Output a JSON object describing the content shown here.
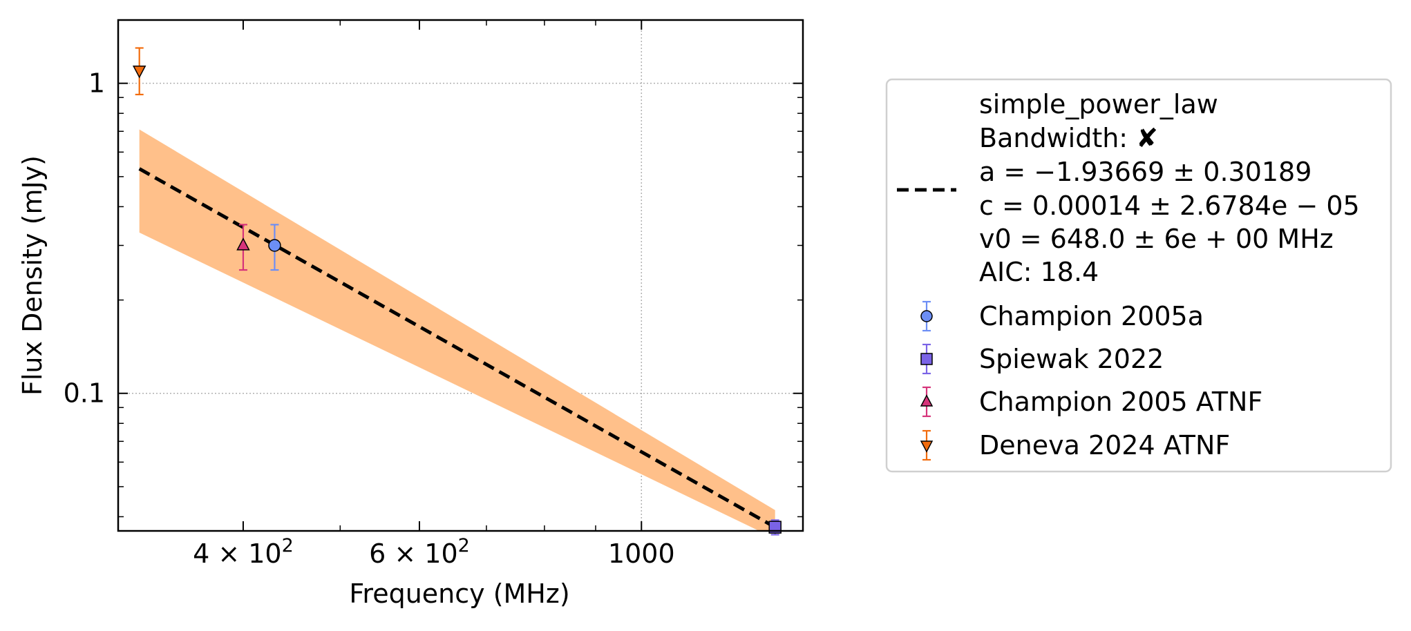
{
  "chart_data": {
    "type": "scatter",
    "xlabel": "Frequency (MHz)",
    "ylabel": "Flux Density (mJy)",
    "x_scale": "log",
    "y_scale": "log",
    "xlim": [
      300,
      1450
    ],
    "ylim": [
      0.036,
      1.6
    ],
    "x_ticks": [
      {
        "value": 400,
        "label_base": "4 × 10",
        "label_exp": "2"
      },
      {
        "value": 600,
        "label_base": "6 × 10",
        "label_exp": "2"
      },
      {
        "value": 1000,
        "label_base": "1000",
        "label_exp": ""
      }
    ],
    "y_ticks": [
      {
        "value": 1,
        "label": "1"
      },
      {
        "value": 0.1,
        "label": "0.1"
      }
    ],
    "grid": true,
    "legend_position": "outside-right",
    "fit": {
      "name": "simple_power_law",
      "legend_lines": [
        "simple_power_law",
        "Bandwidth: ✘",
        "a = −1.93669 ± 0.30189",
        "c = 0.00014 ± 2.6784e − 05",
        "v0 = 648.0 ± 6e + 00 MHz",
        "AIC: 18.4"
      ],
      "x": [
        315,
        1360
      ],
      "y": [
        0.53,
        0.037
      ],
      "band_lower": [
        0.33,
        0.034
      ],
      "band_upper": [
        0.71,
        0.042
      ],
      "line_color": "#000000",
      "band_color": "#ffc08a"
    },
    "series": [
      {
        "name": "Champion 2005a",
        "marker": "circle",
        "color": "#6c8ef5",
        "error_color": "#6c8ef5",
        "points": [
          {
            "x": 430,
            "y": 0.3,
            "y_low": 0.25,
            "y_high": 0.35
          }
        ]
      },
      {
        "name": "Spiewak 2022",
        "marker": "square",
        "color": "#7a63e6",
        "error_color": "#7a63e6",
        "points": [
          {
            "x": 1360,
            "y": 0.037,
            "y_low": 0.035,
            "y_high": 0.039
          }
        ]
      },
      {
        "name": "Champion 2005 ATNF",
        "marker": "triangle-up",
        "color": "#d6337a",
        "error_color": "#d6337a",
        "points": [
          {
            "x": 400,
            "y": 0.3,
            "y_low": 0.25,
            "y_high": 0.35
          }
        ]
      },
      {
        "name": "Deneva 2024 ATNF",
        "marker": "triangle-down",
        "color": "#f26c0d",
        "error_color": "#f26c0d",
        "points": [
          {
            "x": 315,
            "y": 1.1,
            "y_low": 0.92,
            "y_high": 1.3
          }
        ]
      }
    ]
  }
}
